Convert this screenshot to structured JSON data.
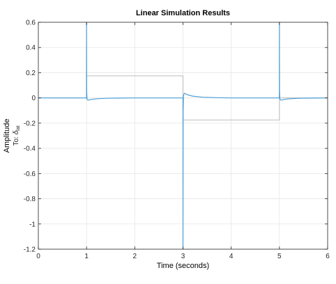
{
  "chart_data": {
    "type": "line",
    "title": "Linear Simulation Results",
    "xlabel": "Time (seconds)",
    "ylabel": "Amplitude",
    "io_label": {
      "prefix": "To: ",
      "symbol": "δ",
      "subscript": "lat"
    },
    "xlim": [
      0,
      6
    ],
    "ylim": [
      -1.2,
      0.6
    ],
    "x_ticks": [
      0,
      1,
      2,
      3,
      4,
      5,
      6
    ],
    "x_tick_labels": [
      "0",
      "1",
      "2",
      "3",
      "4",
      "5",
      "6"
    ],
    "y_ticks": [
      0.6,
      0.4,
      0.2,
      0,
      -0.2,
      -0.4,
      -0.6,
      -0.8,
      -1,
      -1.2
    ],
    "y_tick_labels": [
      "0.6",
      "0.4",
      "0.2",
      "0",
      "-0.2",
      "-0.4",
      "-0.6",
      "-0.8",
      "-1",
      "-1.2"
    ],
    "grid": true,
    "series": [
      {
        "role": "input",
        "color": "#b3b3b3",
        "x": [
          0,
          1,
          1,
          3,
          3,
          5,
          5,
          6
        ],
        "y": [
          0,
          0,
          0.175,
          0.175,
          -0.175,
          -0.175,
          0,
          0
        ]
      },
      {
        "role": "response",
        "color": "#4a9fd8",
        "x": [
          0,
          0.999,
          1.0,
          1.003,
          1.01,
          1.03,
          1.06,
          1.1,
          1.2,
          1.4,
          1.7,
          2.0,
          2.999,
          3.0,
          3.003,
          3.01,
          3.03,
          3.06,
          3.1,
          3.2,
          3.4,
          3.7,
          4.0,
          4.999,
          5.0,
          5.003,
          5.01,
          5.03,
          5.06,
          5.1,
          5.2,
          5.4,
          5.7,
          6.0
        ],
        "y": [
          0,
          0,
          0.6,
          0.05,
          -0.01,
          -0.018,
          -0.016,
          -0.012,
          -0.007,
          -0.003,
          -0.001,
          0,
          0,
          -1.2,
          -0.1,
          0.02,
          0.036,
          0.032,
          0.024,
          0.014,
          0.006,
          0.002,
          0,
          0,
          0.6,
          0.05,
          -0.01,
          -0.018,
          -0.016,
          -0.012,
          -0.007,
          -0.003,
          -0.001,
          0
        ]
      }
    ]
  },
  "colors": {
    "grid": "#e6e6e6",
    "axes": "#262626",
    "input_line": "#b3b3b3",
    "response_line": "#4a9fd8"
  }
}
